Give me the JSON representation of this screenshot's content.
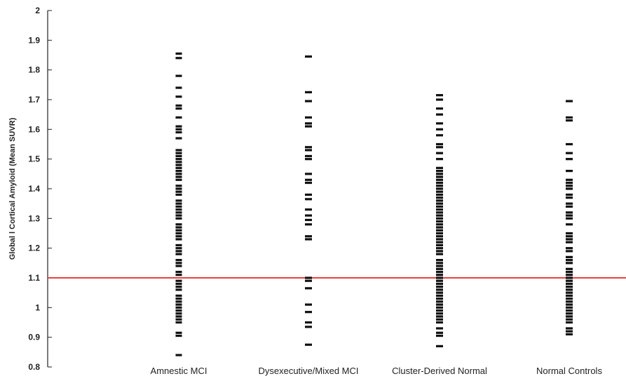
{
  "chart_data": {
    "type": "scatter",
    "title": "",
    "ylabel": "Global l Cortical Amyloid (Mean SUVR)",
    "xlabel": "",
    "ylim": [
      0.8,
      2
    ],
    "yticks": [
      "0.8",
      "0.9",
      "1",
      "1.1",
      "1.2",
      "1.3",
      "1.4",
      "1.5",
      "1.6",
      "1.7",
      "1.8",
      "1.9",
      "2"
    ],
    "yticks_values": [
      0.8,
      0.9,
      1.0,
      1.1,
      1.2,
      1.3,
      1.4,
      1.5,
      1.6,
      1.7,
      1.8,
      1.9,
      2.0
    ],
    "categories": [
      "Amnestic MCI",
      "Dysexecutive/Mixed MCI",
      "Cluster-Derived Normal",
      "Normal Controls"
    ],
    "reference_line": {
      "value": 1.1,
      "color": "#e8423f"
    },
    "marker_color": "#111111",
    "grid": false,
    "series": [
      {
        "values": [
          0.84,
          0.905,
          0.915,
          0.95,
          0.96,
          0.97,
          0.98,
          0.99,
          1.0,
          1.01,
          1.02,
          1.03,
          1.04,
          1.06,
          1.07,
          1.08,
          1.09,
          1.11,
          1.12,
          1.14,
          1.15,
          1.16,
          1.18,
          1.19,
          1.2,
          1.21,
          1.23,
          1.24,
          1.25,
          1.26,
          1.27,
          1.28,
          1.3,
          1.31,
          1.32,
          1.33,
          1.34,
          1.35,
          1.36,
          1.38,
          1.39,
          1.4,
          1.41,
          1.43,
          1.44,
          1.45,
          1.46,
          1.47,
          1.48,
          1.49,
          1.5,
          1.51,
          1.52,
          1.53,
          1.57,
          1.59,
          1.6,
          1.61,
          1.64,
          1.67,
          1.68,
          1.71,
          1.74,
          1.78,
          1.84,
          1.855
        ]
      },
      {
        "values": [
          0.875,
          0.935,
          0.95,
          0.985,
          1.01,
          1.065,
          1.09,
          1.1,
          1.23,
          1.24,
          1.28,
          1.295,
          1.31,
          1.33,
          1.365,
          1.38,
          1.42,
          1.43,
          1.45,
          1.5,
          1.51,
          1.53,
          1.54,
          1.61,
          1.62,
          1.64,
          1.695,
          1.725,
          1.845
        ]
      },
      {
        "values": [
          0.87,
          0.905,
          0.915,
          0.93,
          0.95,
          0.96,
          0.97,
          0.98,
          0.99,
          1.0,
          1.01,
          1.02,
          1.03,
          1.04,
          1.05,
          1.06,
          1.07,
          1.08,
          1.09,
          1.1,
          1.11,
          1.12,
          1.13,
          1.14,
          1.15,
          1.16,
          1.18,
          1.19,
          1.2,
          1.21,
          1.22,
          1.23,
          1.24,
          1.25,
          1.26,
          1.27,
          1.28,
          1.29,
          1.3,
          1.31,
          1.32,
          1.33,
          1.34,
          1.35,
          1.36,
          1.37,
          1.38,
          1.39,
          1.4,
          1.41,
          1.42,
          1.43,
          1.44,
          1.45,
          1.46,
          1.47,
          1.5,
          1.52,
          1.54,
          1.55,
          1.58,
          1.6,
          1.62,
          1.65,
          1.67,
          1.7,
          1.715
        ]
      },
      {
        "values": [
          0.91,
          0.92,
          0.93,
          0.95,
          0.96,
          0.97,
          0.98,
          0.99,
          1.0,
          1.01,
          1.02,
          1.03,
          1.04,
          1.05,
          1.06,
          1.07,
          1.08,
          1.09,
          1.1,
          1.11,
          1.12,
          1.13,
          1.15,
          1.16,
          1.17,
          1.19,
          1.2,
          1.22,
          1.23,
          1.24,
          1.25,
          1.28,
          1.3,
          1.31,
          1.32,
          1.34,
          1.35,
          1.37,
          1.38,
          1.4,
          1.41,
          1.42,
          1.43,
          1.46,
          1.5,
          1.52,
          1.55,
          1.63,
          1.64,
          1.695
        ]
      }
    ]
  }
}
